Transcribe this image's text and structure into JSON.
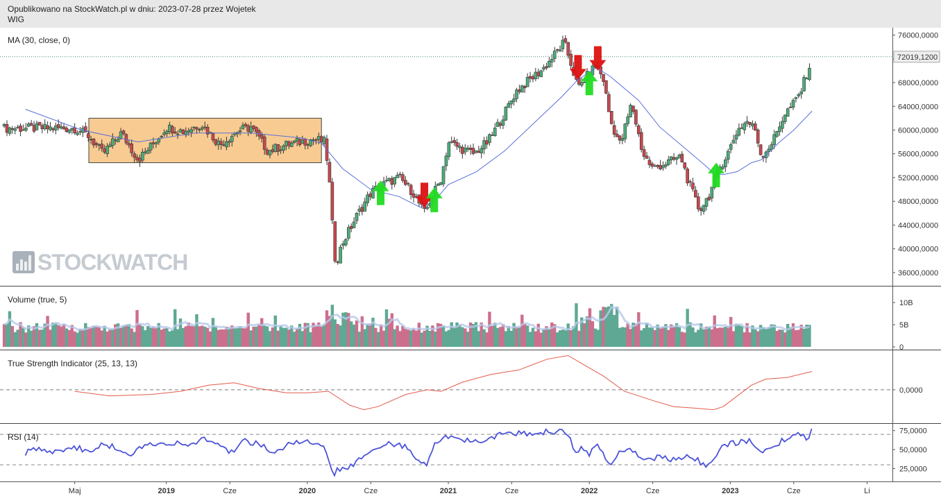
{
  "header": {
    "published": "Opublikowano na StockWatch.pl w dniu: 2023-07-28 przez Wojetek",
    "symbol": "WIG"
  },
  "watermark": "STOCKWATCH",
  "colors": {
    "up": "#4cae7a",
    "down": "#c8484e",
    "ma": "#5a6fd8",
    "tsi": "#e35a4a",
    "rsi": "#4b52d8",
    "vol_up": "#5fa894",
    "vol_down": "#cc6f8d",
    "vol_ma": "#b8c9ea",
    "buy_arrow": "#22dd22",
    "sell_arrow": "#dd1111",
    "box_fill": "#f6c27f",
    "last_price_bg": "#eeeeee"
  },
  "chart_data": [
    {
      "type": "candlestick",
      "title": "MA (30, close, 0)",
      "series": [
        {
          "name": "WIG",
          "kind": "weekly-candles",
          "path": [
            [
              2018.35,
              60300
            ],
            [
              2018.45,
              59000
            ],
            [
              2018.55,
              56000
            ],
            [
              2018.68,
              59500
            ],
            [
              2018.8,
              55000
            ],
            [
              2018.9,
              57500
            ],
            [
              2019.0,
              60500
            ],
            [
              2019.12,
              59800
            ],
            [
              2019.25,
              61000
            ],
            [
              2019.38,
              57500
            ],
            [
              2019.5,
              59800
            ],
            [
              2019.6,
              60500
            ],
            [
              2019.72,
              56500
            ],
            [
              2019.85,
              57500
            ],
            [
              2019.95,
              58000
            ],
            [
              2020.05,
              58500
            ],
            [
              2020.12,
              58000
            ],
            [
              2020.15,
              53500
            ],
            [
              2020.18,
              43000
            ],
            [
              2020.2,
              37500
            ],
            [
              2020.25,
              41000
            ],
            [
              2020.35,
              45500
            ],
            [
              2020.45,
              49500
            ],
            [
              2020.55,
              51000
            ],
            [
              2020.65,
              52000
            ],
            [
              2020.75,
              49500
            ],
            [
              2020.83,
              46000
            ],
            [
              2020.88,
              48500
            ],
            [
              2020.95,
              52000
            ],
            [
              2021.0,
              58000
            ],
            [
              2021.08,
              57000
            ],
            [
              2021.18,
              56000
            ],
            [
              2021.28,
              58000
            ],
            [
              2021.38,
              62000
            ],
            [
              2021.48,
              66500
            ],
            [
              2021.58,
              68500
            ],
            [
              2021.68,
              70500
            ],
            [
              2021.78,
              73500
            ],
            [
              2021.82,
              74800
            ],
            [
              2021.86,
              72000
            ],
            [
              2021.92,
              67000
            ],
            [
              2021.98,
              69000
            ],
            [
              2022.05,
              71000
            ],
            [
              2022.1,
              68500
            ],
            [
              2022.15,
              61500
            ],
            [
              2022.22,
              57500
            ],
            [
              2022.3,
              64500
            ],
            [
              2022.38,
              56000
            ],
            [
              2022.45,
              53500
            ],
            [
              2022.55,
              54500
            ],
            [
              2022.65,
              55500
            ],
            [
              2022.7,
              51500
            ],
            [
              2022.78,
              46500
            ],
            [
              2022.85,
              49000
            ],
            [
              2022.92,
              53500
            ],
            [
              2022.98,
              56000
            ],
            [
              2023.05,
              60000
            ],
            [
              2023.12,
              61500
            ],
            [
              2023.18,
              60000
            ],
            [
              2023.22,
              55500
            ],
            [
              2023.3,
              58000
            ],
            [
              2023.38,
              62500
            ],
            [
              2023.45,
              64500
            ],
            [
              2023.5,
              66500
            ],
            [
              2023.55,
              70000
            ],
            [
              2023.58,
              72000
            ]
          ]
        },
        {
          "name": "MA (30, close, 0)",
          "path": [
            [
              2018.0,
              63500
            ],
            [
              2018.4,
              60000
            ],
            [
              2018.8,
              58000
            ],
            [
              2019.2,
              59500
            ],
            [
              2019.6,
              59500
            ],
            [
              2019.95,
              58700
            ],
            [
              2020.1,
              57800
            ],
            [
              2020.25,
              53500
            ],
            [
              2020.45,
              50000
            ],
            [
              2020.65,
              48800
            ],
            [
              2020.8,
              47000
            ],
            [
              2020.9,
              48000
            ],
            [
              2021.0,
              50800
            ],
            [
              2021.2,
              53000
            ],
            [
              2021.4,
              56500
            ],
            [
              2021.6,
              61000
            ],
            [
              2021.8,
              65500
            ],
            [
              2021.92,
              68500
            ],
            [
              2022.05,
              70500
            ],
            [
              2022.15,
              69000
            ],
            [
              2022.35,
              65000
            ],
            [
              2022.5,
              60500
            ],
            [
              2022.65,
              57500
            ],
            [
              2022.8,
              54500
            ],
            [
              2022.88,
              52800
            ],
            [
              2022.95,
              52500
            ],
            [
              2023.05,
              53000
            ],
            [
              2023.15,
              54500
            ],
            [
              2023.22,
              55000
            ],
            [
              2023.35,
              58000
            ],
            [
              2023.45,
              60000
            ],
            [
              2023.58,
              63200
            ]
          ]
        }
      ],
      "last_price": "72019,1200",
      "ylim": [
        34000,
        77000
      ],
      "yticks": [
        "76000,0000",
        "72000,0000",
        "68000,0000",
        "64000,0000",
        "60000,0000",
        "56000,0000",
        "52000,0000",
        "48000,0000",
        "44000,0000",
        "40000,0000",
        "36000,0000"
      ],
      "annotations": [
        {
          "kind": "range-box",
          "x": [
            2018.45,
            2020.1
          ],
          "y": [
            54500,
            62000
          ]
        },
        {
          "kind": "buy",
          "x": 2020.52,
          "y": 50000
        },
        {
          "kind": "sell",
          "x": 2020.83,
          "y": 48500
        },
        {
          "kind": "buy",
          "x": 2020.9,
          "y": 48800
        },
        {
          "kind": "sell",
          "x": 2021.92,
          "y": 70000
        },
        {
          "kind": "buy",
          "x": 2022.0,
          "y": 68500
        },
        {
          "kind": "sell",
          "x": 2022.06,
          "y": 71500
        },
        {
          "kind": "buy",
          "x": 2022.9,
          "y": 53000
        }
      ]
    },
    {
      "type": "bar",
      "title": "Volume (true, 5)",
      "ylim": [
        0,
        13000000000
      ],
      "yticks": [
        "10B",
        "5B",
        "0"
      ],
      "series": [
        {
          "name": "Volume",
          "note": "weekly volume bars, mostly 3B-6B with spikes near 2020 and 2022"
        }
      ]
    },
    {
      "type": "line",
      "title": "True Strength Indicator (25, 13, 13)",
      "yticks": [
        "0,0000"
      ],
      "ylim": [
        -10,
        12
      ],
      "series": [
        {
          "name": "TSI",
          "path": [
            [
              2018.35,
              -0.5
            ],
            [
              2018.6,
              -2
            ],
            [
              2018.9,
              -1.5
            ],
            [
              2019.1,
              -0.5
            ],
            [
              2019.3,
              1.5
            ],
            [
              2019.48,
              2.3
            ],
            [
              2019.65,
              0.5
            ],
            [
              2019.85,
              -1
            ],
            [
              2020.0,
              -1
            ],
            [
              2020.15,
              -0.5
            ],
            [
              2020.3,
              -5
            ],
            [
              2020.4,
              -6.5
            ],
            [
              2020.5,
              -5.5
            ],
            [
              2020.7,
              -1.5
            ],
            [
              2020.85,
              0
            ],
            [
              2020.95,
              -0.5
            ],
            [
              2021.1,
              2.5
            ],
            [
              2021.3,
              5
            ],
            [
              2021.5,
              6.5
            ],
            [
              2021.7,
              10
            ],
            [
              2021.85,
              11.2
            ],
            [
              2021.95,
              8.5
            ],
            [
              2022.1,
              4.5
            ],
            [
              2022.25,
              -0.5
            ],
            [
              2022.45,
              -3.5
            ],
            [
              2022.6,
              -5.5
            ],
            [
              2022.75,
              -6
            ],
            [
              2022.88,
              -6.5
            ],
            [
              2022.95,
              -5.5
            ],
            [
              2023.05,
              -2
            ],
            [
              2023.15,
              1.5
            ],
            [
              2023.25,
              3.5
            ],
            [
              2023.4,
              4
            ],
            [
              2023.58,
              6
            ]
          ]
        }
      ]
    },
    {
      "type": "line",
      "title": "RSI (14)",
      "yticks": [
        "75,0000",
        "50,0000",
        "25,0000"
      ],
      "ylim": [
        10,
        82
      ],
      "series": [
        {
          "name": "RSI",
          "path": [
            [
              2018.0,
              46
            ],
            [
              2018.1,
              52
            ],
            [
              2018.2,
              48
            ],
            [
              2018.35,
              53
            ],
            [
              2018.45,
              47
            ],
            [
              2018.55,
              60
            ],
            [
              2018.65,
              50
            ],
            [
              2018.75,
              45
            ],
            [
              2018.85,
              55
            ],
            [
              2018.95,
              60
            ],
            [
              2019.05,
              58
            ],
            [
              2019.15,
              55
            ],
            [
              2019.25,
              63
            ],
            [
              2019.35,
              60
            ],
            [
              2019.45,
              45
            ],
            [
              2019.55,
              62
            ],
            [
              2019.65,
              58
            ],
            [
              2019.75,
              48
            ],
            [
              2019.85,
              55
            ],
            [
              2019.95,
              60
            ],
            [
              2020.05,
              58
            ],
            [
              2020.12,
              55
            ],
            [
              2020.16,
              30
            ],
            [
              2020.18,
              15
            ],
            [
              2020.22,
              25
            ],
            [
              2020.3,
              28
            ],
            [
              2020.4,
              42
            ],
            [
              2020.5,
              55
            ],
            [
              2020.6,
              58
            ],
            [
              2020.7,
              54
            ],
            [
              2020.75,
              40
            ],
            [
              2020.8,
              35
            ],
            [
              2020.85,
              30
            ],
            [
              2020.9,
              55
            ],
            [
              2021.0,
              68
            ],
            [
              2021.1,
              62
            ],
            [
              2021.2,
              60
            ],
            [
              2021.3,
              66
            ],
            [
              2021.4,
              73
            ],
            [
              2021.5,
              72
            ],
            [
              2021.6,
              70
            ],
            [
              2021.7,
              75
            ],
            [
              2021.78,
              73
            ],
            [
              2021.85,
              72
            ],
            [
              2021.9,
              45
            ],
            [
              2021.95,
              52
            ],
            [
              2022.0,
              42
            ],
            [
              2022.05,
              60
            ],
            [
              2022.1,
              42
            ],
            [
              2022.15,
              32
            ],
            [
              2022.2,
              45
            ],
            [
              2022.3,
              52
            ],
            [
              2022.4,
              35
            ],
            [
              2022.5,
              40
            ],
            [
              2022.6,
              36
            ],
            [
              2022.7,
              45
            ],
            [
              2022.78,
              34
            ],
            [
              2022.83,
              30
            ],
            [
              2022.88,
              40
            ],
            [
              2022.95,
              55
            ],
            [
              2023.05,
              60
            ],
            [
              2023.15,
              62
            ],
            [
              2023.2,
              45
            ],
            [
              2023.3,
              55
            ],
            [
              2023.4,
              65
            ],
            [
              2023.5,
              70
            ],
            [
              2023.55,
              64
            ],
            [
              2023.58,
              75
            ]
          ]
        }
      ]
    }
  ],
  "xaxis": {
    "ticks": [
      {
        "label": "Maj",
        "x": 2018.35
      },
      {
        "label": "2019",
        "x": 2019.0
      },
      {
        "label": "Cze",
        "x": 2019.45
      },
      {
        "label": "2020",
        "x": 2020.0
      },
      {
        "label": "Cze",
        "x": 2020.45
      },
      {
        "label": "2021",
        "x": 2021.0
      },
      {
        "label": "Cze",
        "x": 2021.45
      },
      {
        "label": "2022",
        "x": 2022.0
      },
      {
        "label": "Cze",
        "x": 2022.45
      },
      {
        "label": "2023",
        "x": 2023.0
      },
      {
        "label": "Cze",
        "x": 2023.45
      },
      {
        "label": "Li",
        "x": 2023.97
      }
    ]
  }
}
